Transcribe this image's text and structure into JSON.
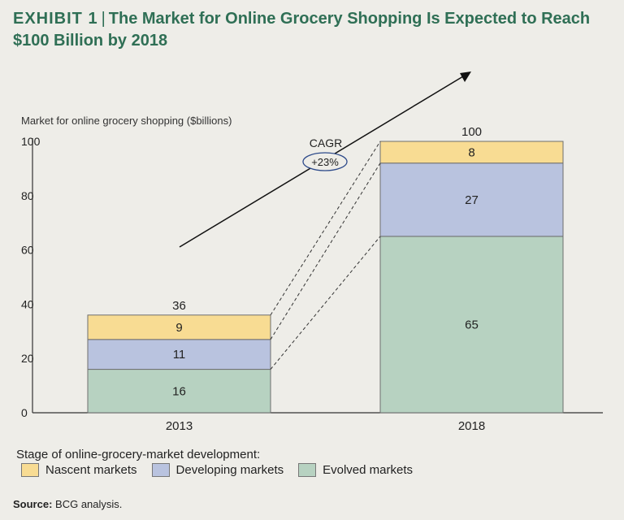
{
  "header": {
    "exhibit": "EXHIBIT 1",
    "separator": "|",
    "title": "The Market for Online Grocery Shopping Is Expected to Reach $100 Billion by 2018"
  },
  "chart_data": {
    "type": "bar",
    "stacked": true,
    "ylabel": "Market for online grocery shopping ($billions)",
    "ylim": [
      0,
      100
    ],
    "yticks": [
      0,
      20,
      40,
      60,
      80,
      100
    ],
    "categories": [
      "2013",
      "2018"
    ],
    "totals": [
      "36",
      "100"
    ],
    "series": [
      {
        "name": "Evolved markets",
        "values": [
          16,
          65
        ],
        "color": "#b7d2c1"
      },
      {
        "name": "Developing markets",
        "values": [
          11,
          27
        ],
        "color": "#b9c3df"
      },
      {
        "name": "Nascent markets",
        "values": [
          9,
          8
        ],
        "color": "#f8dc93"
      }
    ],
    "annotation": {
      "label": "CAGR",
      "value": "+23%"
    }
  },
  "legend": {
    "title": "Stage of online-grocery-market development:",
    "items": [
      {
        "label": "Nascent markets",
        "color": "#f8dc93"
      },
      {
        "label": "Developing markets",
        "color": "#b9c3df"
      },
      {
        "label": "Evolved markets",
        "color": "#b7d2c1"
      }
    ]
  },
  "footer": {
    "source_label": "Source:",
    "source_text": "BCG analysis."
  }
}
